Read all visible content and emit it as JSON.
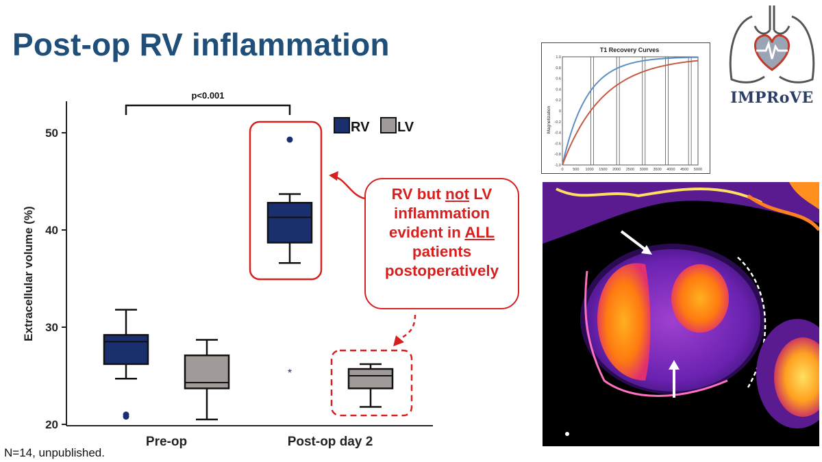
{
  "slide": {
    "title": "Post-op RV inflammation",
    "footnote": "N=14, unpublished."
  },
  "callout": {
    "line1_pre": "RV but ",
    "line1_underlined": "not",
    "line1_post": " LV",
    "line2": "inflammation",
    "line3_pre": "evident in ",
    "line3_underlined": "ALL",
    "line4": "patients",
    "line5": "postoperatively"
  },
  "logo": {
    "text": "IMPRoVE"
  },
  "t1_panel": {
    "title": "T1 Recovery Curves",
    "ylabel": "Magnetization",
    "yticks": [
      "1.0",
      "0.8",
      "0.6",
      "0.4",
      "0.2",
      "0",
      "-0.2",
      "-0.4",
      "-0.6",
      "-0.8",
      "-1.0"
    ],
    "xticks": [
      "0",
      "500",
      "1000",
      "1500",
      "2000",
      "2500",
      "3000",
      "3500",
      "4000",
      "4500",
      "5000"
    ]
  },
  "chart_data": {
    "type": "box",
    "title": "",
    "xlabel": "",
    "ylabel": "Extracellular volume (%)",
    "ylim": [
      20,
      53
    ],
    "yticks": [
      20,
      30,
      40,
      50
    ],
    "categories": [
      "Pre-op",
      "Post-op day 2"
    ],
    "legend": {
      "position": "top-right",
      "entries": [
        "RV",
        "LV"
      ]
    },
    "colors": {
      "RV": "#1a2f6e",
      "LV": "#a09a98",
      "annotation": "#d62020"
    },
    "series": [
      {
        "name": "RV",
        "boxes": [
          {
            "category": "Pre-op",
            "whisker_low": 24.7,
            "q1": 26.2,
            "median": 28.5,
            "q3": 29.2,
            "whisker_high": 31.8,
            "outliers": [
              20.8,
              21.0
            ]
          },
          {
            "category": "Post-op day 2",
            "whisker_low": 36.6,
            "q1": 38.7,
            "median": 41.3,
            "q3": 42.8,
            "whisker_high": 43.7,
            "outliers": [
              49.3
            ]
          }
        ]
      },
      {
        "name": "LV",
        "boxes": [
          {
            "category": "Pre-op",
            "whisker_low": 20.5,
            "q1": 23.7,
            "median": 24.3,
            "q3": 27.1,
            "whisker_high": 28.7,
            "outliers": []
          },
          {
            "category": "Post-op day 2",
            "whisker_low": 21.8,
            "q1": 23.7,
            "median": 25.0,
            "q3": 25.7,
            "whisker_high": 26.2,
            "outliers": []
          }
        ]
      }
    ],
    "extreme_markers": [
      {
        "category": "Post-op day 2",
        "value": 25.5,
        "symbol": "*"
      }
    ],
    "significance": {
      "label": "p<0.001"
    }
  }
}
